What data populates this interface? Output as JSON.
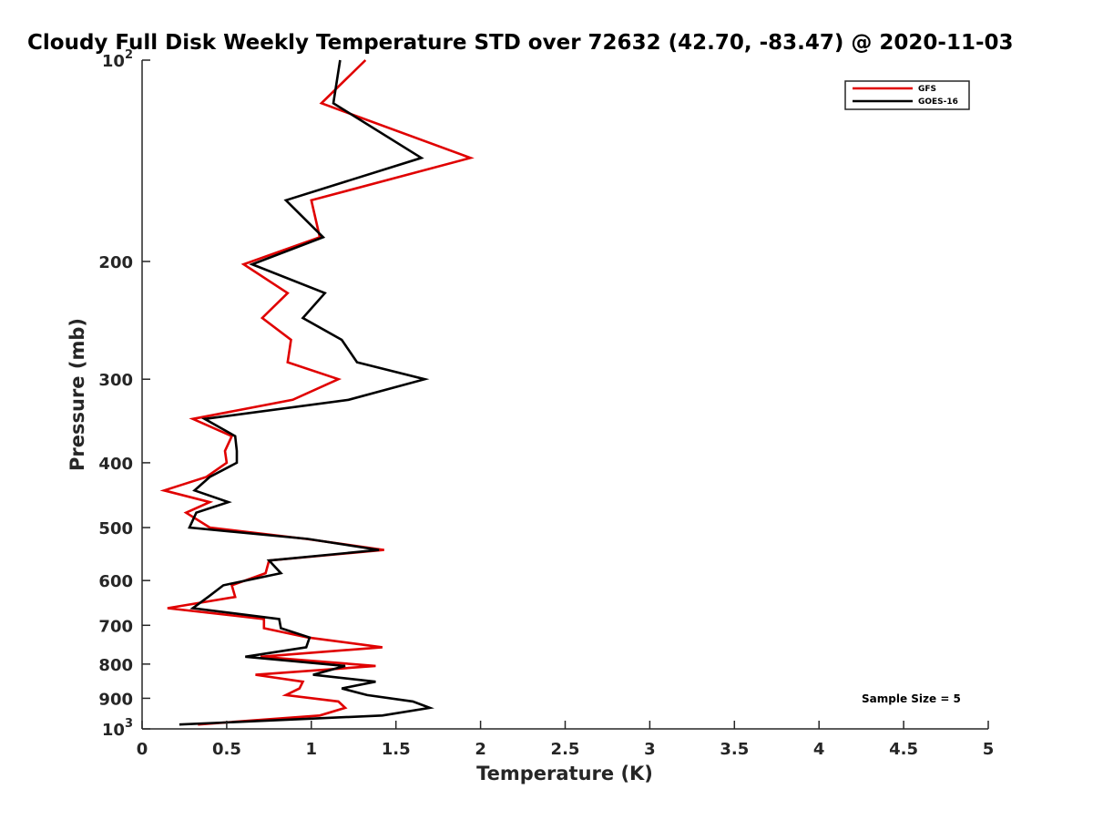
{
  "chart_data": {
    "type": "line",
    "title": "Cloudy Full Disk Weekly Temperature STD over 72632 (42.70, -83.47) @ 2020-11-03",
    "xlabel": "Temperature (K)",
    "ylabel": "Pressure (mb)",
    "xlim": [
      0,
      5
    ],
    "ylim": [
      1000,
      100
    ],
    "yscale": "log",
    "y_reversed": true,
    "grid": false,
    "legend_position": "top-right",
    "x_ticks": [
      {
        "value": 0,
        "label": "0"
      },
      {
        "value": 0.5,
        "label": "0.5"
      },
      {
        "value": 1,
        "label": "1"
      },
      {
        "value": 1.5,
        "label": "1.5"
      },
      {
        "value": 2,
        "label": "2"
      },
      {
        "value": 2.5,
        "label": "2.5"
      },
      {
        "value": 3,
        "label": "3"
      },
      {
        "value": 3.5,
        "label": "3.5"
      },
      {
        "value": 4,
        "label": "4"
      },
      {
        "value": 4.5,
        "label": "4.5"
      },
      {
        "value": 5,
        "label": "5"
      }
    ],
    "y_ticks": [
      {
        "value": 100,
        "base": "10",
        "exp": "2"
      },
      {
        "value": 200,
        "base": "200",
        "exp": ""
      },
      {
        "value": 300,
        "base": "300",
        "exp": ""
      },
      {
        "value": 400,
        "base": "400",
        "exp": ""
      },
      {
        "value": 500,
        "base": "500",
        "exp": ""
      },
      {
        "value": 600,
        "base": "600",
        "exp": ""
      },
      {
        "value": 700,
        "base": "700",
        "exp": ""
      },
      {
        "value": 800,
        "base": "800",
        "exp": ""
      },
      {
        "value": 900,
        "base": "900",
        "exp": ""
      },
      {
        "value": 1000,
        "base": "10",
        "exp": "3"
      }
    ],
    "annotation": "Sample Size = 5",
    "series": [
      {
        "name": "GFS",
        "color": "#e00000",
        "points": [
          [
            1.32,
            100
          ],
          [
            1.06,
            116
          ],
          [
            1.94,
            140
          ],
          [
            1.0,
            162
          ],
          [
            1.05,
            184
          ],
          [
            0.6,
            202
          ],
          [
            0.86,
            223
          ],
          [
            0.71,
            243
          ],
          [
            0.88,
            262
          ],
          [
            0.86,
            283
          ],
          [
            1.16,
            300
          ],
          [
            0.89,
            322
          ],
          [
            0.3,
            344
          ],
          [
            0.53,
            365
          ],
          [
            0.49,
            384
          ],
          [
            0.5,
            400
          ],
          [
            0.38,
            420
          ],
          [
            0.13,
            440
          ],
          [
            0.4,
            458
          ],
          [
            0.26,
            475
          ],
          [
            0.4,
            500
          ],
          [
            0.97,
            520
          ],
          [
            1.43,
            540
          ],
          [
            0.75,
            560
          ],
          [
            0.73,
            585
          ],
          [
            0.53,
            610
          ],
          [
            0.55,
            635
          ],
          [
            0.15,
            660
          ],
          [
            0.72,
            685
          ],
          [
            0.72,
            707
          ],
          [
            0.98,
            730
          ],
          [
            1.42,
            755
          ],
          [
            0.7,
            780
          ],
          [
            1.38,
            805
          ],
          [
            0.67,
            830
          ],
          [
            0.95,
            850
          ],
          [
            0.93,
            870
          ],
          [
            0.85,
            890
          ],
          [
            1.16,
            910
          ],
          [
            1.2,
            930
          ],
          [
            1.05,
            955
          ],
          [
            0.33,
            985
          ]
        ]
      },
      {
        "name": "GOES-16",
        "color": "#000000",
        "points": [
          [
            1.17,
            100
          ],
          [
            1.13,
            116
          ],
          [
            1.65,
            140
          ],
          [
            0.85,
            162
          ],
          [
            1.07,
            184
          ],
          [
            0.65,
            202
          ],
          [
            1.08,
            223
          ],
          [
            0.95,
            243
          ],
          [
            1.18,
            262
          ],
          [
            1.27,
            283
          ],
          [
            1.67,
            300
          ],
          [
            1.22,
            322
          ],
          [
            0.37,
            344
          ],
          [
            0.55,
            365
          ],
          [
            0.56,
            384
          ],
          [
            0.56,
            400
          ],
          [
            0.4,
            420
          ],
          [
            0.31,
            440
          ],
          [
            0.51,
            458
          ],
          [
            0.32,
            475
          ],
          [
            0.28,
            500
          ],
          [
            0.98,
            520
          ],
          [
            1.4,
            540
          ],
          [
            0.75,
            560
          ],
          [
            0.82,
            585
          ],
          [
            0.48,
            610
          ],
          [
            0.39,
            635
          ],
          [
            0.3,
            660
          ],
          [
            0.81,
            685
          ],
          [
            0.82,
            707
          ],
          [
            0.99,
            730
          ],
          [
            0.97,
            755
          ],
          [
            0.61,
            780
          ],
          [
            1.2,
            805
          ],
          [
            1.01,
            830
          ],
          [
            1.38,
            850
          ],
          [
            1.18,
            870
          ],
          [
            1.33,
            890
          ],
          [
            1.6,
            910
          ],
          [
            1.7,
            930
          ],
          [
            1.42,
            955
          ],
          [
            0.22,
            985
          ]
        ]
      }
    ]
  }
}
